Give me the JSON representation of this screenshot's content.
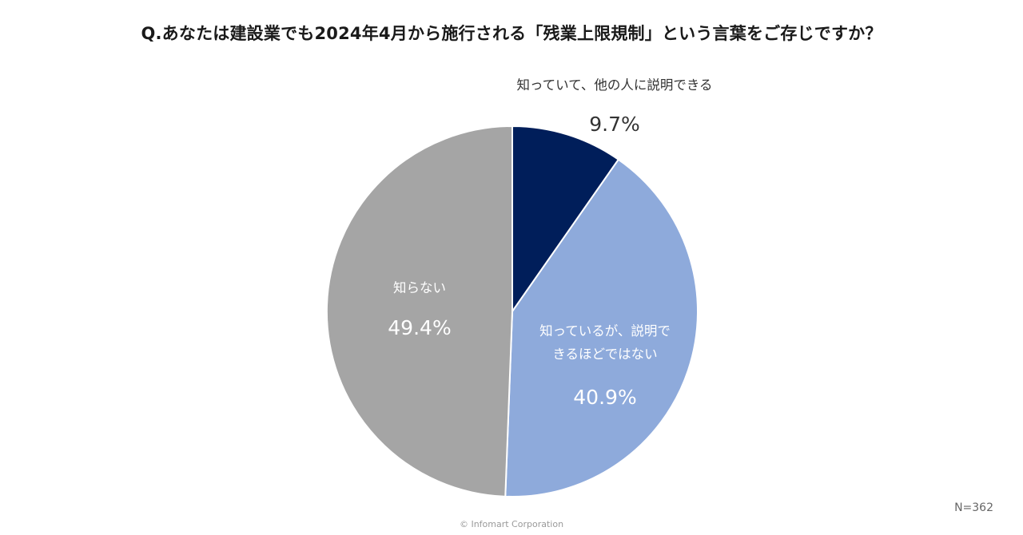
{
  "chart_data": {
    "type": "pie",
    "title": "Q.あなたは建設業でも2024年4月から施行される「残業上限規制」という言葉をご存じですか？",
    "categories": [
      "知っていて、他の人に説明できる",
      "知っているが、説明できるほどではない",
      "知らない"
    ],
    "label_lines": [
      [
        "知っていて、他の人に説明できる"
      ],
      [
        "知っているが、説明で",
        "きるほどではない"
      ],
      [
        "知らない"
      ]
    ],
    "values": [
      9.7,
      40.9,
      49.4
    ],
    "value_labels": [
      "9.7%",
      "40.9%",
      "49.4%"
    ],
    "colors": [
      "#001e5a",
      "#8eaadb",
      "#a5a5a5"
    ],
    "start_angle_deg": 0,
    "direction": "clockwise",
    "sample_size": "N=362"
  },
  "footer": {
    "copyright": "© Infomart Corporation"
  }
}
